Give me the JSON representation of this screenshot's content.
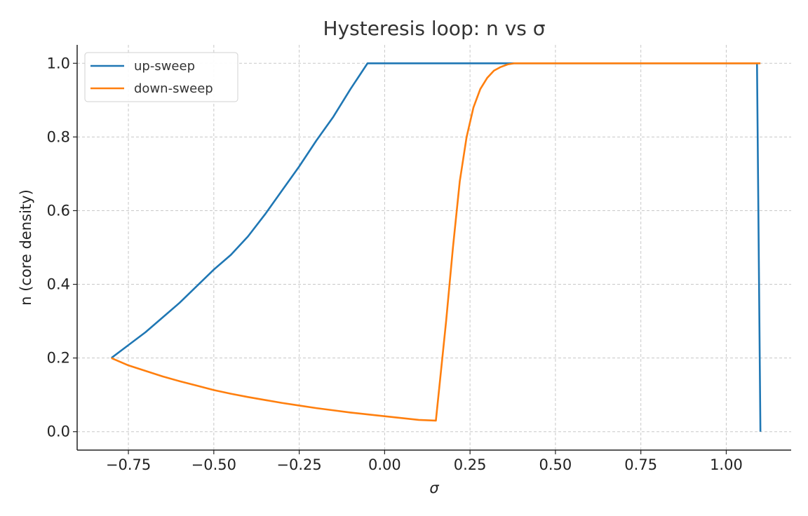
{
  "chart_data": {
    "type": "line",
    "title": "Hysteresis loop: n vs σ",
    "xlabel": "σ",
    "ylabel": "n (core density)",
    "xlim": [
      -0.9,
      1.19
    ],
    "ylim": [
      -0.05,
      1.05
    ],
    "xticks": [
      -0.75,
      -0.5,
      -0.25,
      0.0,
      0.25,
      0.5,
      0.75,
      1.0
    ],
    "xtick_labels": [
      "−0.75",
      "−0.50",
      "−0.25",
      "0.00",
      "0.25",
      "0.50",
      "0.75",
      "1.00"
    ],
    "yticks": [
      0.0,
      0.2,
      0.4,
      0.6,
      0.8,
      1.0
    ],
    "ytick_labels": [
      "0.0",
      "0.2",
      "0.4",
      "0.6",
      "0.8",
      "1.0"
    ],
    "grid": true,
    "legend_position": "upper-left",
    "series": [
      {
        "name": "up-sweep",
        "color": "#1f77b4",
        "x": [
          -0.8,
          -0.75,
          -0.7,
          -0.65,
          -0.6,
          -0.55,
          -0.5,
          -0.45,
          -0.4,
          -0.35,
          -0.3,
          -0.25,
          -0.2,
          -0.15,
          -0.1,
          -0.05,
          0.0,
          0.25,
          0.5,
          0.75,
          1.0,
          1.09,
          1.1
        ],
        "y": [
          0.2,
          0.235,
          0.27,
          0.31,
          0.35,
          0.395,
          0.44,
          0.48,
          0.53,
          0.59,
          0.655,
          0.72,
          0.79,
          0.855,
          0.93,
          1.0,
          1.0,
          1.0,
          1.0,
          1.0,
          1.0,
          1.0,
          0.0
        ]
      },
      {
        "name": "down-sweep",
        "color": "#ff7f0e",
        "x": [
          -0.8,
          -0.75,
          -0.7,
          -0.65,
          -0.6,
          -0.55,
          -0.5,
          -0.45,
          -0.4,
          -0.35,
          -0.3,
          -0.25,
          -0.2,
          -0.15,
          -0.1,
          -0.05,
          0.0,
          0.05,
          0.1,
          0.15,
          0.18,
          0.2,
          0.22,
          0.24,
          0.26,
          0.28,
          0.3,
          0.32,
          0.34,
          0.36,
          0.38,
          0.4,
          0.5,
          0.75,
          1.0,
          1.1
        ],
        "y": [
          0.2,
          0.18,
          0.165,
          0.15,
          0.137,
          0.125,
          0.113,
          0.103,
          0.094,
          0.086,
          0.078,
          0.071,
          0.064,
          0.058,
          0.052,
          0.047,
          0.042,
          0.037,
          0.032,
          0.03,
          0.3,
          0.5,
          0.68,
          0.8,
          0.88,
          0.93,
          0.96,
          0.98,
          0.99,
          0.997,
          1.0,
          1.0,
          1.0,
          1.0,
          1.0,
          1.0
        ]
      }
    ]
  }
}
